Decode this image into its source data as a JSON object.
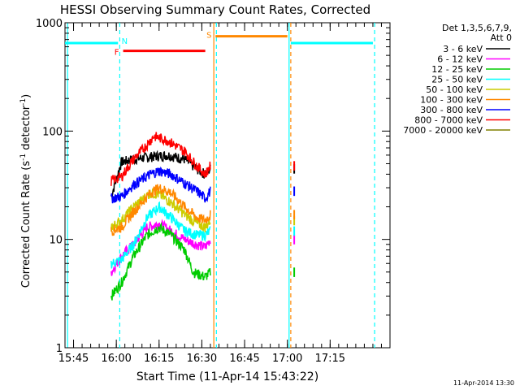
{
  "chart_data": {
    "type": "line",
    "title": "HESSI Observing Summary Count Rates, Corrected",
    "xlabel": "Start Time (11-Apr-14 15:43:22)",
    "ylabel_main": "Corrected Count Rate (s",
    "ylabel_sup1": "-1",
    "ylabel_mid": " detector",
    "ylabel_sup2": "-1",
    "ylabel_end": ")",
    "y_scale": "log",
    "ylim": [
      1,
      1000
    ],
    "xlim_minutes": [
      15.7,
      17.6
    ],
    "x_ticks": [
      {
        "label": "15:45",
        "value": 15.75
      },
      {
        "label": "16:00",
        "value": 16.0
      },
      {
        "label": "16:15",
        "value": 16.25
      },
      {
        "label": "16:30",
        "value": 16.5
      },
      {
        "label": "16:45",
        "value": 16.75
      },
      {
        "label": "17:00",
        "value": 17.0
      },
      {
        "label": "17:15",
        "value": 17.25
      }
    ],
    "y_ticks": [
      {
        "label": "1",
        "value": 1
      },
      {
        "label": "10",
        "value": 10
      },
      {
        "label": "100",
        "value": 100
      },
      {
        "label": "1000",
        "value": 1000
      }
    ],
    "legend_header_1": "Det 1,3,5,6,7,9,",
    "legend_header_2": "Att 0",
    "legend_position": "top-right",
    "series": [
      {
        "name": "3 - 6 keV",
        "color": "#000000",
        "points": [
          [
            15.97,
            25
          ],
          [
            16.03,
            52
          ],
          [
            16.1,
            55
          ],
          [
            16.2,
            58
          ],
          [
            16.3,
            60
          ],
          [
            16.4,
            55
          ],
          [
            16.47,
            45
          ],
          [
            16.52,
            40
          ],
          [
            16.55,
            45
          ]
        ]
      },
      {
        "name": "6 - 12 keV",
        "color": "#ff00ff",
        "points": [
          [
            15.97,
            5
          ],
          [
            16.03,
            7
          ],
          [
            16.1,
            9
          ],
          [
            16.18,
            13
          ],
          [
            16.25,
            14
          ],
          [
            16.32,
            12
          ],
          [
            16.4,
            10
          ],
          [
            16.47,
            9
          ],
          [
            16.52,
            8.5
          ],
          [
            16.55,
            10
          ]
        ]
      },
      {
        "name": "12 - 25 keV",
        "color": "#00cc00",
        "points": [
          [
            15.97,
            3
          ],
          [
            16.03,
            4
          ],
          [
            16.1,
            7
          ],
          [
            16.18,
            11
          ],
          [
            16.25,
            13
          ],
          [
            16.32,
            11
          ],
          [
            16.4,
            8
          ],
          [
            16.45,
            5
          ],
          [
            16.52,
            4.5
          ],
          [
            16.55,
            5
          ]
        ]
      },
      {
        "name": "25 - 50 keV",
        "color": "#00ffff",
        "points": [
          [
            15.97,
            6
          ],
          [
            16.03,
            6.5
          ],
          [
            16.1,
            9
          ],
          [
            16.18,
            16
          ],
          [
            16.25,
            20
          ],
          [
            16.32,
            16
          ],
          [
            16.4,
            12
          ],
          [
            16.47,
            11
          ],
          [
            16.52,
            11
          ],
          [
            16.55,
            12
          ]
        ]
      },
      {
        "name": "50 - 100 keV",
        "color": "#cccc00",
        "points": [
          [
            15.97,
            13
          ],
          [
            16.03,
            15
          ],
          [
            16.1,
            20
          ],
          [
            16.2,
            27
          ],
          [
            16.25,
            26
          ],
          [
            16.32,
            22
          ],
          [
            16.4,
            17
          ],
          [
            16.47,
            14
          ],
          [
            16.52,
            13
          ],
          [
            16.55,
            15
          ]
        ]
      },
      {
        "name": "100 - 300 keV",
        "color": "#ff8800",
        "points": [
          [
            15.97,
            12
          ],
          [
            16.03,
            13
          ],
          [
            16.1,
            18
          ],
          [
            16.2,
            27
          ],
          [
            16.25,
            30
          ],
          [
            16.32,
            27
          ],
          [
            16.4,
            20
          ],
          [
            16.47,
            16
          ],
          [
            16.52,
            15
          ],
          [
            16.55,
            17
          ]
        ]
      },
      {
        "name": "300 - 800 keV",
        "color": "#0000ff",
        "points": [
          [
            15.97,
            24
          ],
          [
            16.03,
            25
          ],
          [
            16.1,
            32
          ],
          [
            16.2,
            40
          ],
          [
            16.25,
            43
          ],
          [
            16.32,
            40
          ],
          [
            16.4,
            33
          ],
          [
            16.47,
            28
          ],
          [
            16.52,
            24
          ],
          [
            16.55,
            28
          ]
        ]
      },
      {
        "name": "800 - 7000 keV",
        "color": "#ff0000",
        "points": [
          [
            15.97,
            35
          ],
          [
            16.03,
            38
          ],
          [
            16.1,
            55
          ],
          [
            16.18,
            75
          ],
          [
            16.22,
            90
          ],
          [
            16.3,
            82
          ],
          [
            16.4,
            65
          ],
          [
            16.47,
            48
          ],
          [
            16.52,
            40
          ],
          [
            16.55,
            48
          ]
        ]
      },
      {
        "name": "7000 - 20000 keV",
        "color": "#808000",
        "points": []
      }
    ],
    "flag_bars": [
      {
        "label": "",
        "color": "#00ffff",
        "start": 15.7,
        "end": 16.01,
        "value": 650
      },
      {
        "label": "N",
        "color": "#00ffff",
        "start": 16.02,
        "end": 16.02,
        "value": 650
      },
      {
        "label": "F",
        "color": "#ff0000",
        "start": 16.04,
        "end": 16.52,
        "value": 550
      },
      {
        "label": "S",
        "color": "#ff8800",
        "start": 16.58,
        "end": 17.0,
        "value": 750
      },
      {
        "label": "",
        "color": "#00ffff",
        "start": 17.02,
        "end": 17.5,
        "value": 650
      }
    ],
    "footer_date": "11-Apr-2014 13:30"
  }
}
